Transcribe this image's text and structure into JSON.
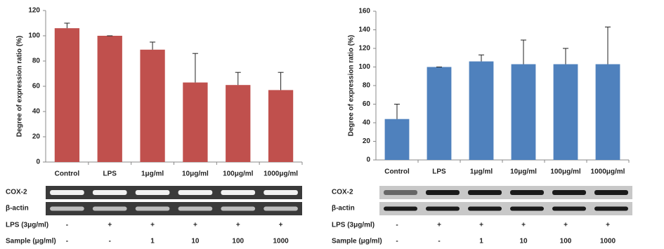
{
  "chart_data": [
    {
      "type": "bar",
      "ylabel": "Degree of expression ratio (%)",
      "categories": [
        "Control",
        "LPS",
        "1μg/ml",
        "10μg/ml",
        "100μg/ml",
        "1000μg/ml"
      ],
      "values": [
        106,
        100,
        89,
        63,
        61,
        57
      ],
      "errors": [
        4,
        0,
        6,
        23,
        10,
        14
      ],
      "color": "#c0504d",
      "ylim": [
        0,
        120
      ],
      "yticks": [
        0,
        20,
        40,
        60,
        80,
        100,
        120
      ],
      "blots": [
        "COX-2",
        "β-actin"
      ],
      "rows": [
        {
          "label": "LPS (3μg/ml)",
          "cells": [
            "-",
            "+",
            "+",
            "+",
            "+",
            "+"
          ]
        },
        {
          "label": "Sample (μg/ml)",
          "cells": [
            "-",
            "-",
            "1",
            "10",
            "100",
            "1000"
          ]
        }
      ]
    },
    {
      "type": "bar",
      "ylabel": "Degree of expression ratio (%)",
      "categories": [
        "Control",
        "LPS",
        "1μg/ml",
        "10μg/ml",
        "100μg/ml",
        "1000μg/ml"
      ],
      "values": [
        44,
        100,
        106,
        103,
        103,
        103
      ],
      "errors": [
        16,
        0,
        7,
        26,
        17,
        40
      ],
      "color": "#4f81bd",
      "ylim": [
        0,
        160
      ],
      "yticks": [
        0,
        20,
        40,
        60,
        80,
        100,
        120,
        140,
        160
      ],
      "blots": [
        "COX-2",
        "β-actin"
      ],
      "rows": [
        {
          "label": "LPS (3μg/ml)",
          "cells": [
            "-",
            "+",
            "+",
            "+",
            "+",
            "+"
          ]
        },
        {
          "label": "Sample (μg/ml)",
          "cells": [
            "-",
            "-",
            "1",
            "10",
            "100",
            "1000"
          ]
        }
      ]
    }
  ]
}
